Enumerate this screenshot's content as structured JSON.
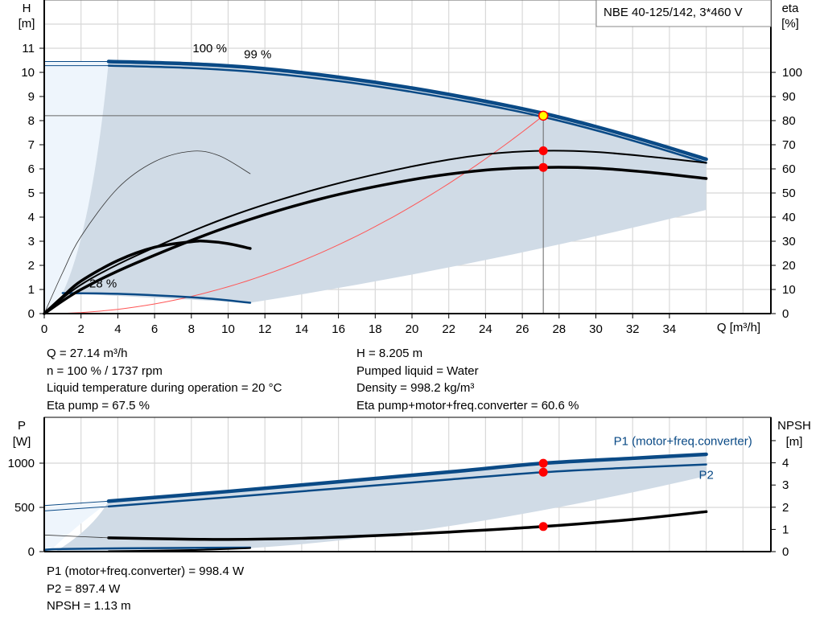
{
  "title": "NBE 40-125/142, 3*460 V",
  "colors": {
    "curve_blue": "#0a4a86",
    "shade": "#d0dbe6",
    "shade_light": "#eef5fc",
    "marker": "#ff0000",
    "duty_marker": "#ffff00",
    "system_curve": "#ff5555",
    "grid": "#d8d8d8"
  },
  "chart_data": [
    {
      "type": "line",
      "name": "head-efficiency",
      "xlabel": "Q [m³/h]",
      "ylabel": "H\n[m]",
      "ylabel_parts": [
        "H",
        "[m]"
      ],
      "y2label_parts": [
        "eta",
        "[%]"
      ],
      "xlim": [
        0,
        39.5
      ],
      "ylim": [
        0,
        13
      ],
      "y2lim": [
        0,
        130
      ],
      "xticks": [
        0,
        2,
        4,
        6,
        8,
        10,
        12,
        14,
        16,
        18,
        20,
        22,
        24,
        26,
        28,
        30,
        32,
        34
      ],
      "yticks": [
        0,
        1,
        2,
        3,
        4,
        5,
        6,
        7,
        8,
        9,
        10,
        11
      ],
      "y2ticks": [
        0,
        10,
        20,
        30,
        40,
        50,
        60,
        70,
        80,
        90,
        100
      ],
      "grid": true,
      "curve_labels": [
        {
          "text": "100 %",
          "x": 9.0,
          "y": 11.0
        },
        {
          "text": "99 %",
          "x": 9.2,
          "y": 10.75
        },
        {
          "text": "28 %",
          "x": 3.2,
          "y": 1.25
        }
      ],
      "series": [
        {
          "axis": "H",
          "style": "thick-blue",
          "points": [
            [
              3.5,
              10.45
            ],
            [
              8,
              10.35
            ],
            [
              12,
              10.15
            ],
            [
              16,
              9.8
            ],
            [
              20,
              9.35
            ],
            [
              24,
              8.8
            ],
            [
              27.14,
              8.3
            ],
            [
              30,
              7.75
            ],
            [
              33,
              7.1
            ],
            [
              36,
              6.4
            ]
          ]
        },
        {
          "axis": "H",
          "style": "blue",
          "points": [
            [
              3.5,
              10.28
            ],
            [
              8,
              10.18
            ],
            [
              12,
              9.98
            ],
            [
              16,
              9.64
            ],
            [
              20,
              9.19
            ],
            [
              24,
              8.65
            ],
            [
              27.14,
              8.15
            ],
            [
              30,
              7.6
            ],
            [
              33,
              6.95
            ],
            [
              36,
              6.25
            ]
          ]
        },
        {
          "axis": "H",
          "style": "thin-blue",
          "points": [
            [
              0,
              10.45
            ],
            [
              3.5,
              10.45
            ]
          ]
        },
        {
          "axis": "H",
          "style": "thin-blue",
          "points": [
            [
              0,
              10.28
            ],
            [
              3.5,
              10.28
            ]
          ]
        },
        {
          "axis": "H",
          "style": "blue",
          "points": [
            [
              1,
              0.85
            ],
            [
              4,
              0.82
            ],
            [
              7,
              0.72
            ],
            [
              9,
              0.62
            ],
            [
              11.2,
              0.45
            ]
          ]
        },
        {
          "axis": "eta",
          "style": "black",
          "points": [
            [
              0,
              0
            ],
            [
              2,
              12
            ],
            [
              5,
              24
            ],
            [
              10,
              40
            ],
            [
              15,
              52
            ],
            [
              20,
              61
            ],
            [
              24,
              66
            ],
            [
              27.14,
              67.5
            ],
            [
              30,
              67
            ],
            [
              33,
              65
            ],
            [
              36,
              62.5
            ]
          ]
        },
        {
          "axis": "eta",
          "style": "thick-black",
          "points": [
            [
              0,
              0
            ],
            [
              2,
              10
            ],
            [
              5,
              21
            ],
            [
              10,
              36
            ],
            [
              15,
              47.5
            ],
            [
              20,
              55.5
            ],
            [
              24,
              59.5
            ],
            [
              27.14,
              60.6
            ],
            [
              30,
              60.3
            ],
            [
              33,
              58.5
            ],
            [
              36,
              56
            ]
          ]
        },
        {
          "axis": "eta",
          "style": "hair-black",
          "points": [
            [
              0,
              0
            ],
            [
              1,
              17
            ],
            [
              2,
              32
            ],
            [
              4,
              52
            ],
            [
              6,
              63
            ],
            [
              8,
              67.3
            ],
            [
              9.5,
              65.5
            ],
            [
              11.2,
              58
            ]
          ]
        },
        {
          "axis": "eta",
          "style": "thick-black",
          "points": [
            [
              0,
              0
            ],
            [
              1,
              7
            ],
            [
              2,
              13.5
            ],
            [
              4,
              22
            ],
            [
              6,
              27.5
            ],
            [
              8,
              29.8
            ],
            [
              8.8,
              30
            ],
            [
              10,
              29
            ],
            [
              11.2,
              27
            ]
          ]
        }
      ],
      "duty_point": {
        "Q": 27.14,
        "H": 8.205,
        "eta_pump": 67.5,
        "eta_total": 60.6
      }
    },
    {
      "type": "line",
      "name": "power-npsh",
      "ylabel_parts": [
        "P",
        "[W]"
      ],
      "y2label_parts": [
        "NPSH",
        "[m]"
      ],
      "xlim": [
        0,
        39.5
      ],
      "ylim": [
        0,
        1518
      ],
      "y2lim": [
        0,
        6.05
      ],
      "yticks": [
        0,
        500,
        1000
      ],
      "y2ticks": [
        0,
        1,
        2,
        3,
        4,
        5
      ],
      "y2ticklabels": [
        "0",
        "1",
        "2",
        "3",
        "4",
        ""
      ],
      "grid": true,
      "curve_labels": [
        {
          "text": "P1 (motor+freq.converter)",
          "x": 38.5,
          "y": 1250,
          "anchor": "end"
        },
        {
          "text": "P2",
          "x": 35.6,
          "y": 870,
          "anchor": "start"
        }
      ],
      "series": [
        {
          "axis": "P",
          "name": "P1 (motor+freq.converter)",
          "style": "thick-blue",
          "points": [
            [
              3.5,
              570
            ],
            [
              10,
              680
            ],
            [
              16,
              790
            ],
            [
              22,
              900
            ],
            [
              27.14,
              998.4
            ],
            [
              32,
              1055
            ],
            [
              36,
              1100
            ]
          ]
        },
        {
          "axis": "P",
          "style": "thin-blue",
          "points": [
            [
              0,
              520
            ],
            [
              3.5,
              570
            ]
          ]
        },
        {
          "axis": "P",
          "name": "P2",
          "style": "blue",
          "points": [
            [
              3.5,
              510
            ],
            [
              10,
              615
            ],
            [
              16,
              715
            ],
            [
              22,
              815
            ],
            [
              27.14,
              897.4
            ],
            [
              32,
              950
            ],
            [
              36,
              985
            ]
          ]
        },
        {
          "axis": "P",
          "style": "thin-blue",
          "points": [
            [
              0,
              460
            ],
            [
              3.5,
              510
            ]
          ]
        },
        {
          "axis": "P",
          "style": "blue",
          "points": [
            [
              0,
              20
            ],
            [
              1,
              30
            ],
            [
              6,
              40
            ],
            [
              11.2,
              45
            ]
          ]
        },
        {
          "axis": "P",
          "style": "black",
          "points": [
            [
              3.5,
              5
            ],
            [
              8,
              18
            ],
            [
              11.2,
              40
            ]
          ]
        },
        {
          "axis": "NPSH",
          "style": "thick-black",
          "points": [
            [
              3.5,
              0.62
            ],
            [
              7,
              0.57
            ],
            [
              10,
              0.55
            ],
            [
              14,
              0.6
            ],
            [
              18,
              0.72
            ],
            [
              22,
              0.88
            ],
            [
              27.14,
              1.13
            ],
            [
              32,
              1.45
            ],
            [
              36,
              1.8
            ]
          ]
        },
        {
          "axis": "NPSH",
          "style": "hair-black",
          "points": [
            [
              0,
              0.75
            ],
            [
              3.5,
              0.62
            ]
          ]
        }
      ],
      "duty_point": {
        "Q": 27.14,
        "P1": 998.4,
        "P2": 897.4,
        "NPSH": 1.13
      }
    }
  ],
  "info": {
    "left": [
      "Q = 27.14 m³/h",
      "n = 100 % / 1737 rpm",
      "Liquid temperature during operation = 20 °C",
      "Eta pump = 67.5 %"
    ],
    "right": [
      "H = 8.205 m",
      "Pumped liquid = Water",
      "Density = 998.2 kg/m³",
      "Eta pump+motor+freq.converter = 60.6 %"
    ],
    "bottom": [
      "P1 (motor+freq.converter) = 998.4 W",
      "P2 = 897.4 W",
      "NPSH = 1.13 m"
    ]
  }
}
